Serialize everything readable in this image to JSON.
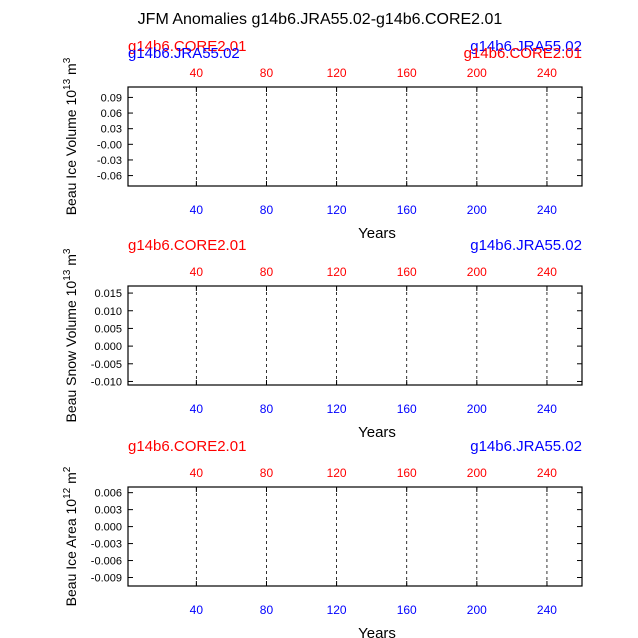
{
  "figure": {
    "title": "JFM Anomalies g14b6.JRA55.02-g14b6.CORE2.01"
  },
  "colors": {
    "core": "#ff0000",
    "jra": "#0000ff",
    "axis": "#000000",
    "bottom_ticks": "#0000ff",
    "top_ticks": "#ff0000"
  },
  "chart_data": [
    {
      "type": "line",
      "ylabel": "Beau Ice Volume 10",
      "ylabel_exp": "13",
      "ylabel_unit": " m",
      "ylabel_unit_exp": "3",
      "xlabel": "Years",
      "xlim": [
        1,
        260
      ],
      "ylim": [
        -0.08,
        0.11
      ],
      "yticks": [
        -0.06,
        -0.03,
        0.0,
        0.03,
        0.06,
        0.09
      ],
      "ytick_labels": [
        "-0.06",
        "-0.03",
        "-0.00",
        "0.03",
        "0.06",
        "0.09"
      ],
      "xticks": [
        40,
        80,
        120,
        160,
        200,
        240
      ],
      "xtick_labels": [
        "40",
        "80",
        "120",
        "160",
        "200",
        "240"
      ],
      "vlines": [
        40,
        80,
        120,
        160,
        200,
        240
      ],
      "legend_left": [
        "g14b6.CORE2.01",
        "g14b6.JRA55.02"
      ],
      "legend_right": [
        "g14b6.JRA55.02",
        "g14b6.CORE2.01"
      ],
      "series": [
        {
          "name": "g14b6.CORE2.01",
          "color": "#ff0000",
          "values": []
        },
        {
          "name": "g14b6.JRA55.02",
          "color": "#0000ff",
          "values": []
        }
      ]
    },
    {
      "type": "line",
      "ylabel": "Beau Snow Volume 10",
      "ylabel_exp": "13",
      "ylabel_unit": " m",
      "ylabel_unit_exp": "3",
      "xlabel": "Years",
      "xlim": [
        1,
        260
      ],
      "ylim": [
        -0.011,
        0.017
      ],
      "yticks": [
        -0.01,
        -0.005,
        0.0,
        0.005,
        0.01,
        0.015
      ],
      "ytick_labels": [
        "-0.010",
        "-0.005",
        "0.000",
        "0.005",
        "0.010",
        "0.015"
      ],
      "xticks": [
        40,
        80,
        120,
        160,
        200,
        240
      ],
      "xtick_labels": [
        "40",
        "80",
        "120",
        "160",
        "200",
        "240"
      ],
      "vlines": [
        40,
        80,
        120,
        160,
        200,
        240
      ],
      "legend_left": [
        "g14b6.CORE2.01"
      ],
      "legend_right": [
        "g14b6.JRA55.02"
      ],
      "series": [
        {
          "name": "g14b6.CORE2.01",
          "color": "#ff0000",
          "values": []
        },
        {
          "name": "g14b6.JRA55.02",
          "color": "#0000ff",
          "values": []
        }
      ]
    },
    {
      "type": "line",
      "ylabel": "Beau Ice Area 10",
      "ylabel_exp": "12",
      "ylabel_unit": " m",
      "ylabel_unit_exp": "2",
      "xlabel": "Years",
      "xlim": [
        1,
        260
      ],
      "ylim": [
        -0.0105,
        0.007
      ],
      "yticks": [
        -0.009,
        -0.006,
        -0.003,
        0.0,
        0.003,
        0.006
      ],
      "ytick_labels": [
        "-0.009",
        "-0.006",
        "-0.003",
        "0.000",
        "0.003",
        "0.006"
      ],
      "xticks": [
        40,
        80,
        120,
        160,
        200,
        240
      ],
      "xtick_labels": [
        "40",
        "80",
        "120",
        "160",
        "200",
        "240"
      ],
      "vlines": [
        40,
        80,
        120,
        160,
        200,
        240
      ],
      "legend_left": [
        "g14b6.CORE2.01"
      ],
      "legend_right": [
        "g14b6.JRA55.02"
      ],
      "series": [
        {
          "name": "g14b6.CORE2.01",
          "color": "#ff0000",
          "values": []
        },
        {
          "name": "g14b6.JRA55.02",
          "color": "#0000ff",
          "values": []
        }
      ]
    }
  ]
}
